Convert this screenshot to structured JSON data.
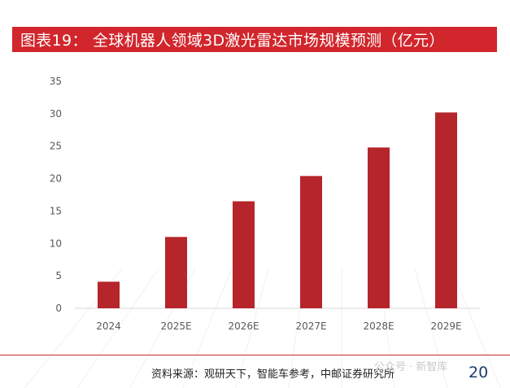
{
  "title": "图表19： 全球机器人领域3D激光雷达市场规模预测（亿元）",
  "chart_data": {
    "type": "bar",
    "title": "全球机器人领域3D激光雷达市场规模预测（亿元）",
    "categories": [
      "2024",
      "2025E",
      "2026E",
      "2027E",
      "2028E",
      "2029E"
    ],
    "values": [
      4.1,
      11.0,
      16.5,
      20.4,
      24.8,
      30.2
    ],
    "ylim": [
      0,
      35
    ],
    "yticks": [
      0,
      5,
      10,
      15,
      20,
      25,
      30,
      35
    ],
    "xlabel": "",
    "ylabel": "",
    "grid": false,
    "bar_color": "#b5252b"
  },
  "source": "资料来源：观研天下，智能车参考，中邮证券研究所",
  "watermark": "公众号 · 新智库",
  "page_number": "20",
  "colors": {
    "accent": "#d1262c",
    "page_number": "#1f3b6e"
  }
}
